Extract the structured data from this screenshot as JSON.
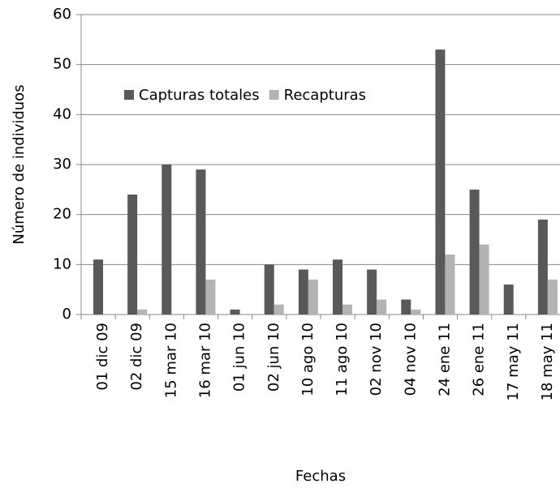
{
  "chart_data": {
    "type": "bar",
    "xlabel": "Fechas",
    "ylabel": "Número de individuos",
    "categories": [
      "01 dic 09",
      "02 dic 09",
      "15 mar 10",
      "16 mar 10",
      "01 jun 10",
      "02 jun 10",
      "10 ago 10",
      "11 ago 10",
      "02 nov 10",
      "04 nov 10",
      "24 ene 11",
      "26 ene 11",
      "17 may 11",
      "18 may 11"
    ],
    "series": [
      {
        "name": "Capturas totales",
        "color": "#595959",
        "values": [
          11,
          24,
          30,
          29,
          1,
          10,
          9,
          11,
          9,
          3,
          53,
          25,
          6,
          19
        ]
      },
      {
        "name": "Recapturas",
        "color": "#b3b3b3",
        "values": [
          0,
          1,
          0,
          7,
          0,
          2,
          7,
          2,
          3,
          1,
          12,
          14,
          0,
          7
        ]
      }
    ],
    "ylim": [
      0,
      60
    ],
    "yticks": [
      0,
      10,
      20,
      30,
      40,
      50,
      60
    ],
    "grid": true,
    "legend": "upper left"
  }
}
